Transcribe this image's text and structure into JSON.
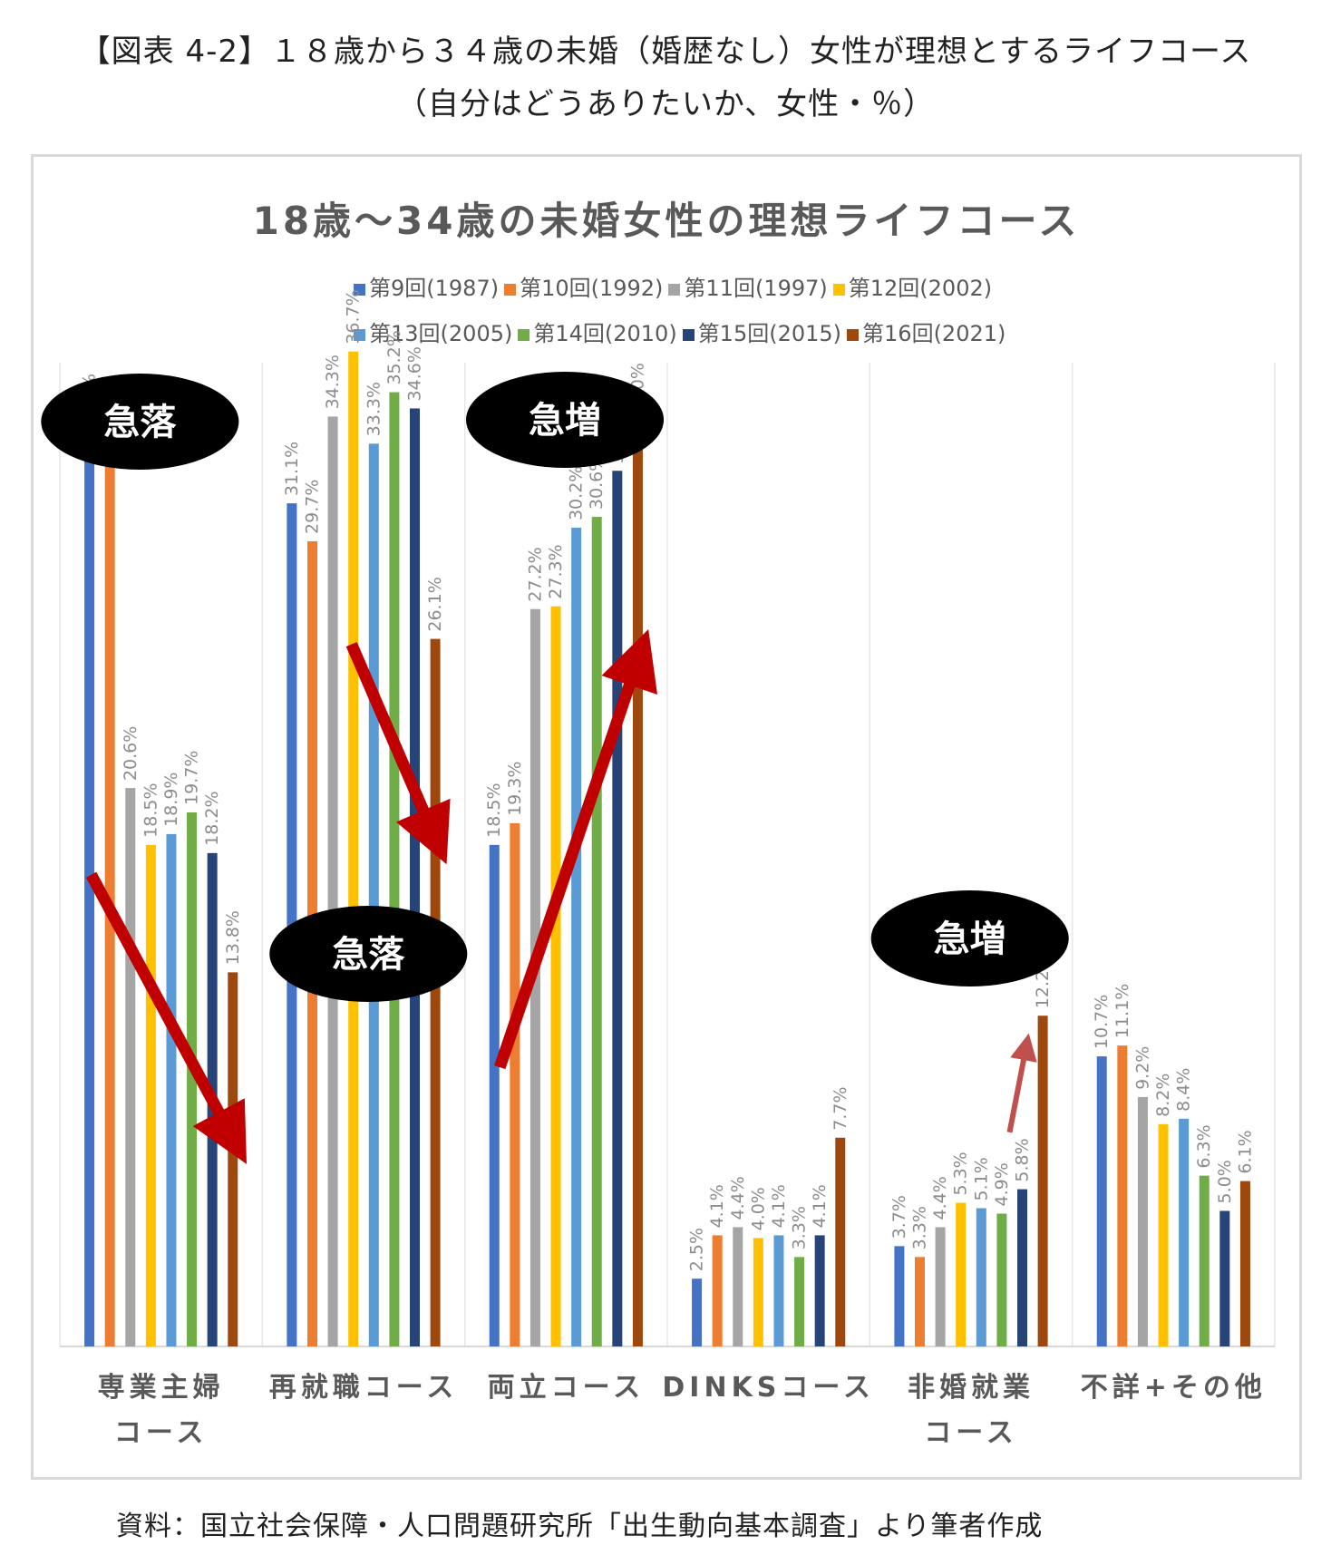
{
  "header": {
    "line1": "【図表 4-2】１８歳から３４歳の未婚（婚歴なし）女性が理想とするライフコース",
    "line2": "（自分はどうありたいか、女性・％）"
  },
  "source": "資料：国立社会保障・人口問題研究所「出生動向基本調査」より筆者作成",
  "chart_data": {
    "type": "bar",
    "title": "18歳～34歳の未婚女性の理想ライフコース",
    "legend_position": "top",
    "grid": false,
    "categories": [
      [
        "専業主婦",
        "コース"
      ],
      [
        "再就職コース"
      ],
      [
        "両立コース"
      ],
      [
        "DINKSコース"
      ],
      [
        "非婚就業",
        "コース"
      ],
      [
        "不詳+その他"
      ]
    ],
    "series": [
      {
        "name": "第9回(1987)",
        "color": "#4472C4",
        "values": [
          33.6,
          31.1,
          18.5,
          2.5,
          3.7,
          10.7
        ]
      },
      {
        "name": "第10回(1992)",
        "color": "#ED7D31",
        "values": [
          32.5,
          29.7,
          19.3,
          4.1,
          3.3,
          11.1
        ]
      },
      {
        "name": "第11回(1997)",
        "color": "#A5A5A5",
        "values": [
          20.6,
          34.3,
          27.2,
          4.4,
          4.4,
          9.2
        ]
      },
      {
        "name": "第12回(2002)",
        "color": "#FFC000",
        "values": [
          18.5,
          36.7,
          27.3,
          4.0,
          5.3,
          8.2
        ]
      },
      {
        "name": "第13回(2005)",
        "color": "#5B9BD5",
        "values": [
          18.9,
          33.3,
          30.2,
          4.1,
          5.1,
          8.4
        ]
      },
      {
        "name": "第14回(2010)",
        "color": "#70AD47",
        "values": [
          19.7,
          35.2,
          30.6,
          3.3,
          4.9,
          6.3
        ]
      },
      {
        "name": "第15回(2015)",
        "color": "#264478",
        "values": [
          18.2,
          34.6,
          32.3,
          4.1,
          5.8,
          5.0
        ]
      },
      {
        "name": "第16回(2021)",
        "color": "#9E480E",
        "values": [
          13.8,
          26.1,
          34.0,
          7.7,
          12.2,
          6.1
        ]
      }
    ],
    "ylim": [
      0,
      40
    ],
    "annotations": [
      {
        "label": "急落",
        "category": 0
      },
      {
        "label": "急落",
        "category": 1
      },
      {
        "label": "急増",
        "category": 2
      },
      {
        "label": "急増",
        "category": 4
      }
    ]
  }
}
